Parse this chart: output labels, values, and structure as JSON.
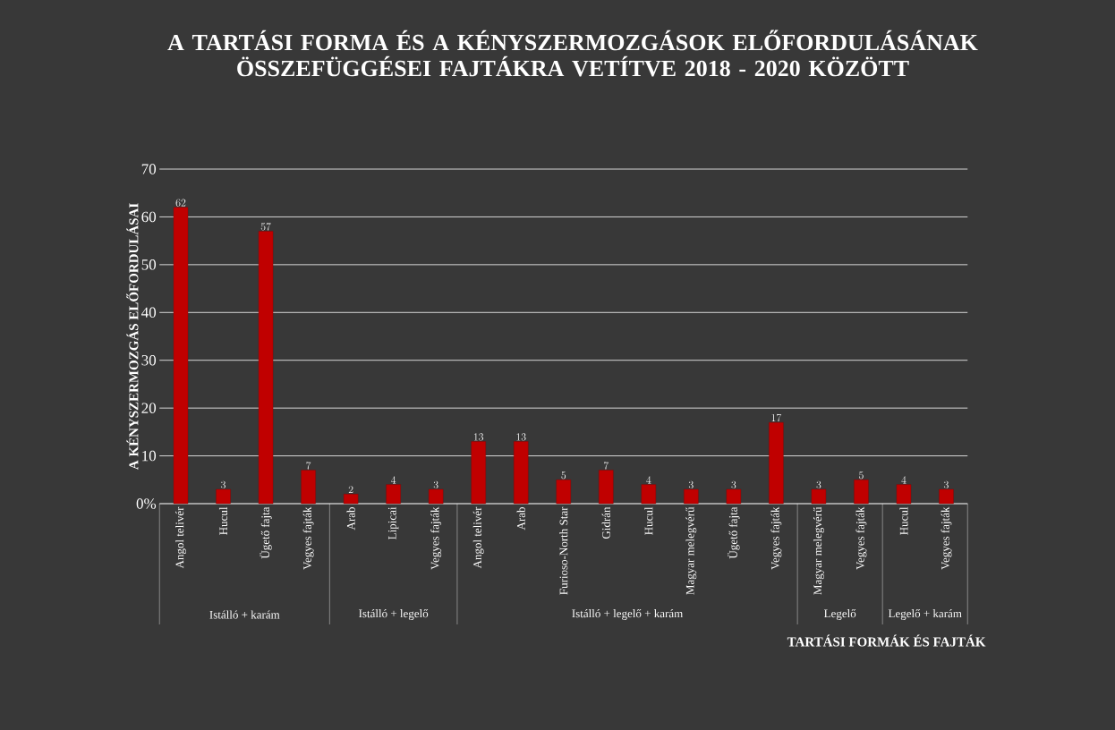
{
  "chart_data": {
    "type": "bar",
    "title": "A  TARTÁSI FORMA ÉS A KÉNYSZERMOZGÁSOK ELŐFORDULÁSÁNAK ÖSSZEFÜGGÉSEI FAJTÁKRA VETÍTVE 2018 - 2020 KÖZÖTT",
    "xlabel": "TARTÁSI FORMÁK ÉS FAJTÁK",
    "ylabel": "A KÉNYSZERMOZGÁS ELŐFORDULÁSAI",
    "categories": [
      "Angol telivér",
      "Hucul",
      "Ügető fajta",
      "Vegyes fajták",
      "Arab",
      "Lipicai",
      "Vegyes fajták",
      "Angol telivér",
      "Arab",
      "Furioso-North Star",
      "Gidrán",
      "Hucul",
      "Magyar melegvérű",
      "Ügető fajta",
      "Vegyes fajták",
      "Magyar melegvérű",
      "Vegyes fajták",
      "Hucul",
      "Vegyes fajták"
    ],
    "values": [
      62,
      3,
      57,
      7,
      2,
      4,
      3,
      13,
      13,
      5,
      7,
      4,
      3,
      3,
      17,
      3,
      5,
      4,
      3
    ],
    "color": "#c00000",
    "annotations": [
      "Istálló + karám",
      "Istálló + legelő",
      "Istálló + legelő + karám",
      "Legelő",
      "Legelő + karám"
    ],
    "ylim": [
      0,
      70
    ],
    "yticks": [
      {
        "value": 0,
        "label": "0%"
      },
      10,
      20,
      30,
      40,
      50,
      60,
      70
    ],
    "grid": "y",
    "data_labels": true
  }
}
